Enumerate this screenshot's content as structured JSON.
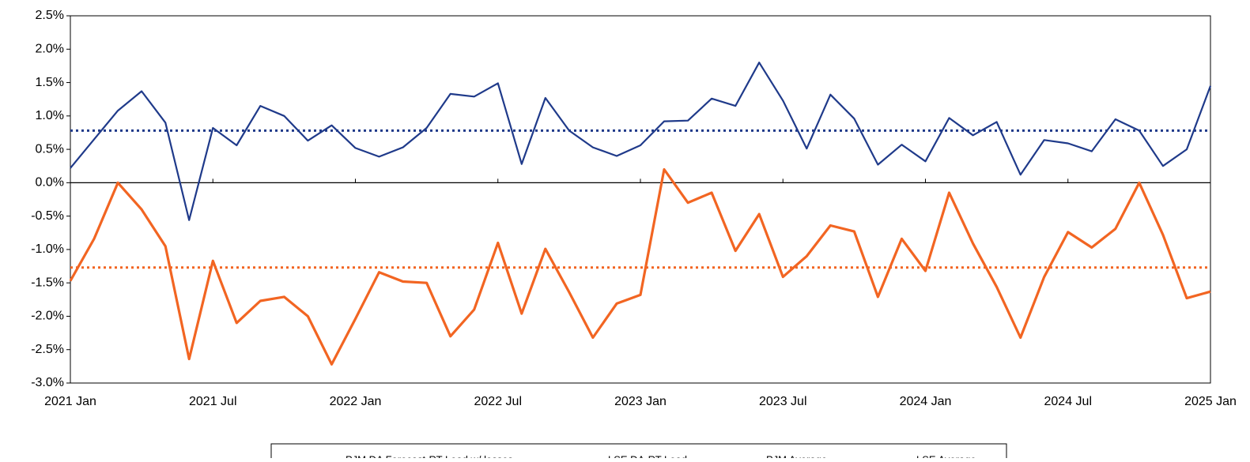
{
  "chart_data": {
    "type": "line",
    "x": [
      "2021-01",
      "2021-02",
      "2021-03",
      "2021-04",
      "2021-05",
      "2021-06",
      "2021-07",
      "2021-08",
      "2021-09",
      "2021-10",
      "2021-11",
      "2021-12",
      "2022-01",
      "2022-02",
      "2022-03",
      "2022-04",
      "2022-05",
      "2022-06",
      "2022-07",
      "2022-08",
      "2022-09",
      "2022-10",
      "2022-11",
      "2022-12",
      "2023-01",
      "2023-02",
      "2023-03",
      "2023-04",
      "2023-05",
      "2023-06",
      "2023-07",
      "2023-08",
      "2023-09",
      "2023-10",
      "2023-11",
      "2023-12",
      "2024-01",
      "2024-02",
      "2024-03",
      "2024-04",
      "2024-05",
      "2024-06",
      "2024-07",
      "2024-08",
      "2024-09",
      "2024-10",
      "2024-11",
      "2024-12",
      "2025-01"
    ],
    "series": [
      {
        "name": "PJM DA Forecast-RT Load w/ losses",
        "color": "#1f3a8a",
        "width": 2.2,
        "values": [
          0.22,
          0.65,
          1.08,
          1.37,
          0.9,
          -0.56,
          0.82,
          0.56,
          1.15,
          1.0,
          0.63,
          0.86,
          0.52,
          0.39,
          0.53,
          0.82,
          1.33,
          1.29,
          1.49,
          0.28,
          1.27,
          0.78,
          0.53,
          0.4,
          0.56,
          0.92,
          0.93,
          1.26,
          1.15,
          1.8,
          1.23,
          0.51,
          1.32,
          0.96,
          0.27,
          0.57,
          0.32,
          0.97,
          0.71,
          0.91,
          0.12,
          0.64,
          0.59,
          0.47,
          0.95,
          0.78,
          0.25,
          0.5,
          1.45
        ]
      },
      {
        "name": "LSE DA-RT Load",
        "color": "#f26522",
        "width": 3.2,
        "values": [
          -1.47,
          -0.84,
          0.0,
          -0.4,
          -0.95,
          -2.64,
          -1.17,
          -2.1,
          -1.77,
          -1.71,
          -2.0,
          -2.72,
          -2.04,
          -1.34,
          -1.48,
          -1.5,
          -2.3,
          -1.9,
          -0.9,
          -1.96,
          -0.99,
          -1.64,
          -2.32,
          -1.81,
          -1.68,
          0.2,
          -0.3,
          -0.15,
          -1.02,
          -0.47,
          -1.41,
          -1.1,
          -0.64,
          -0.73,
          -1.71,
          -0.84,
          -1.32,
          -0.15,
          -0.91,
          -1.56,
          -2.32,
          -1.41,
          -0.74,
          -0.97,
          -0.69,
          0.0,
          -0.78,
          -1.73,
          -1.63
        ]
      }
    ],
    "average_lines": [
      {
        "name": "PJM Average",
        "color": "#1f3a8a",
        "value": 0.78
      },
      {
        "name": "LSE Average",
        "color": "#f26522",
        "value": -1.27
      }
    ],
    "xlim": [
      "2021-01",
      "2025-01"
    ],
    "xticks": [
      {
        "value": "2021-01",
        "label": "2021 Jan"
      },
      {
        "value": "2021-07",
        "label": "2021 Jul"
      },
      {
        "value": "2022-01",
        "label": "2022 Jan"
      },
      {
        "value": "2022-07",
        "label": "2022 Jul"
      },
      {
        "value": "2023-01",
        "label": "2023 Jan"
      },
      {
        "value": "2023-07",
        "label": "2023 Jul"
      },
      {
        "value": "2024-01",
        "label": "2024 Jan"
      },
      {
        "value": "2024-07",
        "label": "2024 Jul"
      },
      {
        "value": "2025-01",
        "label": "2025 Jan"
      }
    ],
    "ylim": [
      -3.0,
      2.5
    ],
    "yticks": [
      {
        "value": 2.5,
        "label": "2.5%"
      },
      {
        "value": 2.0,
        "label": "2.0%"
      },
      {
        "value": 1.5,
        "label": "1.5%"
      },
      {
        "value": 1.0,
        "label": "1.0%"
      },
      {
        "value": 0.5,
        "label": "0.5%"
      },
      {
        "value": 0.0,
        "label": "0.0%"
      },
      {
        "value": -0.5,
        "label": "-0.5%"
      },
      {
        "value": -1.0,
        "label": "-1.0%"
      },
      {
        "value": -1.5,
        "label": "-1.5%"
      },
      {
        "value": -2.0,
        "label": "-2.0%"
      },
      {
        "value": -2.5,
        "label": "-2.5%"
      },
      {
        "value": -3.0,
        "label": "-3.0%"
      }
    ],
    "legend": "bottom"
  }
}
